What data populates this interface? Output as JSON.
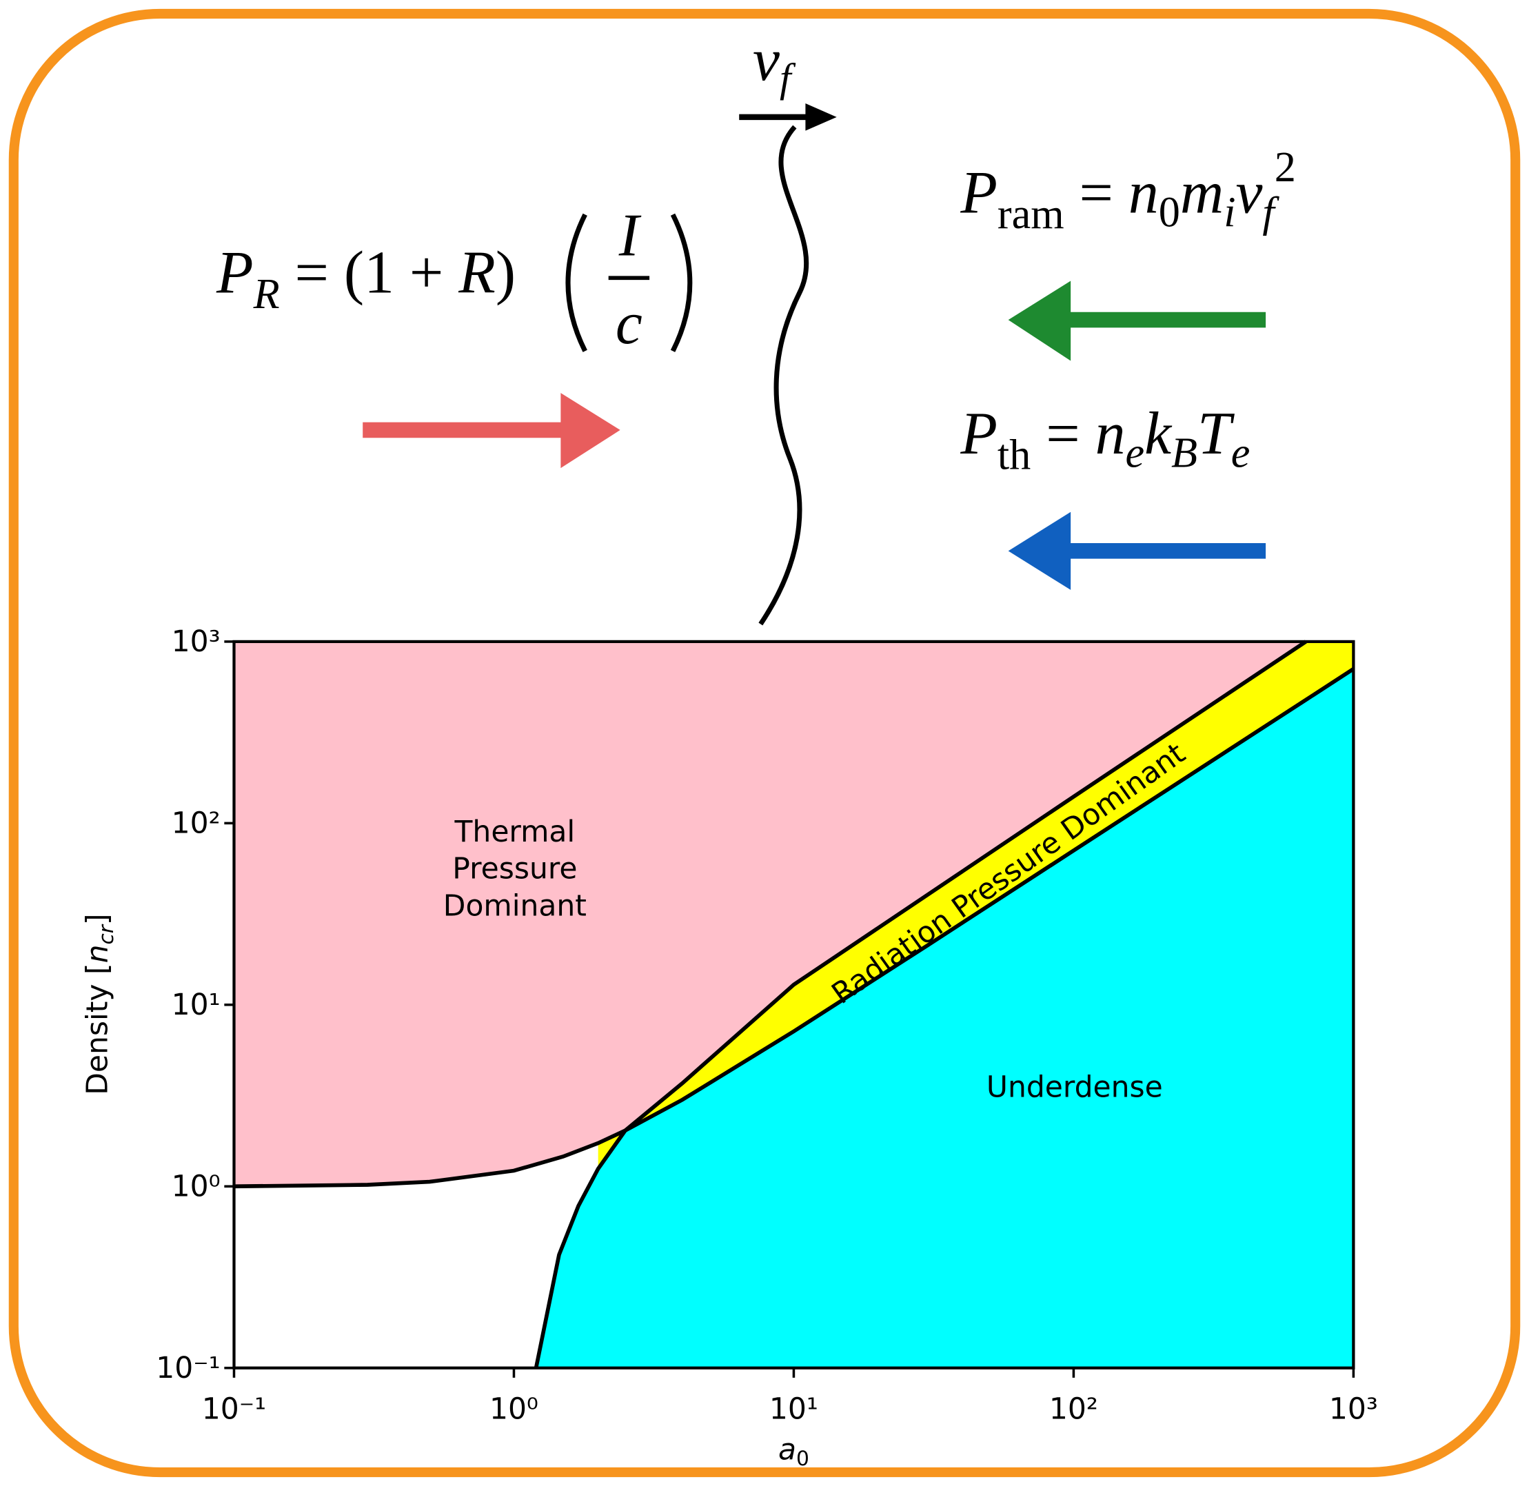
{
  "equations": {
    "radiation": [
      "P",
      "R",
      " = (1 + ",
      "R",
      ")",
      "I",
      "c"
    ],
    "ram": [
      "P",
      "ram",
      " = ",
      "n",
      "0",
      "m",
      "i",
      "v",
      "f",
      "2"
    ],
    "thermal": [
      "P",
      "th",
      " = ",
      "n",
      "e",
      "k",
      "B",
      "T",
      "e"
    ],
    "front_velocity": [
      "v",
      "f"
    ]
  },
  "chart_data": {
    "type": "region",
    "xlabel": [
      "a",
      "0"
    ],
    "ylabel": [
      "Density [",
      "n",
      "cr",
      "]"
    ],
    "log_x": true,
    "log_y": true,
    "xlim": [
      0.1,
      1000
    ],
    "ylim": [
      0.1,
      1000
    ],
    "xticks": [
      {
        "value": 0.1,
        "label": "10⁻¹"
      },
      {
        "value": 1,
        "label": "10⁰"
      },
      {
        "value": 10,
        "label": "10¹"
      },
      {
        "value": 100,
        "label": "10²"
      },
      {
        "value": 1000,
        "label": "10³"
      }
    ],
    "yticks": [
      {
        "value": 0.1,
        "label": "10⁻¹"
      },
      {
        "value": 1,
        "label": "10⁰"
      },
      {
        "value": 10,
        "label": "10¹"
      },
      {
        "value": 100,
        "label": "10²"
      },
      {
        "value": 1000,
        "label": "10³"
      }
    ],
    "curves": [
      {
        "color": "#000000",
        "x": [
          0.1,
          0.3,
          0.5,
          1,
          1.5,
          2,
          2.5,
          4,
          10,
          30,
          100,
          300,
          1000
        ],
        "values": [
          1.0,
          1.02,
          1.06,
          1.22,
          1.46,
          1.73,
          2.03,
          3.0,
          7.14,
          21.2,
          70.7,
          212,
          707
        ]
      },
      {
        "color": "#000000",
        "x": [
          1.2,
          1.45,
          1.7,
          2.0,
          2.5,
          4,
          10,
          100,
          676
        ],
        "values": [
          0.1,
          0.42,
          0.78,
          1.25,
          2.03,
          3.7,
          12.9,
          140,
          1000
        ]
      }
    ],
    "regions": [
      {
        "label": [
          "Thermal",
          "Pressure",
          "Dominant"
        ],
        "color": "#ffc0cb"
      },
      {
        "label": "Radiation Pressure Dominant",
        "color": "#ffff00"
      },
      {
        "label": "Underdense",
        "color": "#00ffff"
      }
    ]
  }
}
